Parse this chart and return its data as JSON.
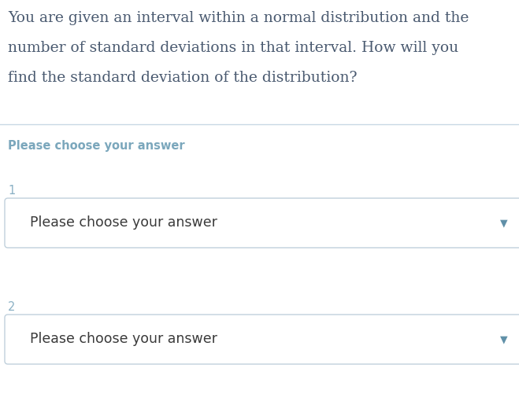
{
  "background_color": "#ffffff",
  "question_text_line1": "You are given an interval within a normal distribution and the",
  "question_text_line2": "number of standard deviations in that interval. How will you",
  "question_text_line3": "find the standard deviation of the distribution?",
  "question_text_color": "#4a5a70",
  "question_font_size": 13.5,
  "section_label_color": "#7ba7bc",
  "section_label_text": "Please choose your answer",
  "section_label_fontsize": 10.5,
  "dropdown_label_color": "#8ab0c4",
  "dropdown_label_fontsize": 10.5,
  "dropdown_text": "Please choose your answer",
  "dropdown_text_color": "#3a3a3a",
  "dropdown_text_fontsize": 12.5,
  "dropdown_bg_color": "#ffffff",
  "dropdown_border_color": "#c0d0dc",
  "arrow_color": "#6090a8",
  "separator_color": "#c8d8e4",
  "fig_width": 6.59,
  "fig_height": 5.15,
  "dpi": 100
}
